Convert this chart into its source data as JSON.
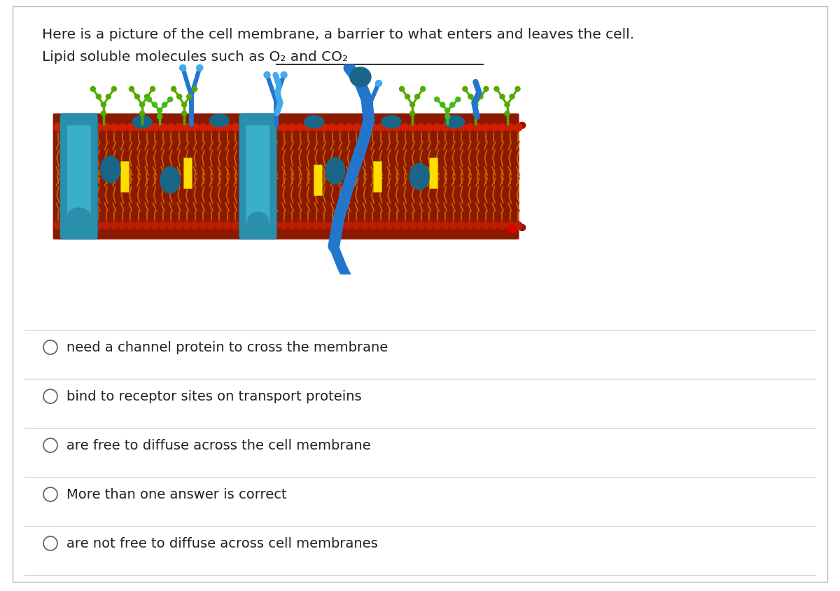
{
  "title_line1": "Here is a picture of the cell membrane, a barrier to what enters and leaves the cell.",
  "title_line2": "Lipid soluble molecules such as O₂ and CO₂",
  "options": [
    "need a channel protein to cross the membrane",
    "bind to receptor sites on transport proteins",
    "are free to diffuse across the cell membrane",
    "More than one answer is correct",
    "are not free to diffuse across cell membranes"
  ],
  "bg_color": "#ffffff",
  "text_color": "#222222",
  "divider_color": "#cccccc",
  "circle_edge_color": "#666666",
  "title_fontsize": 14.5,
  "option_fontsize": 14.0,
  "fig_width": 12.0,
  "fig_height": 8.45
}
